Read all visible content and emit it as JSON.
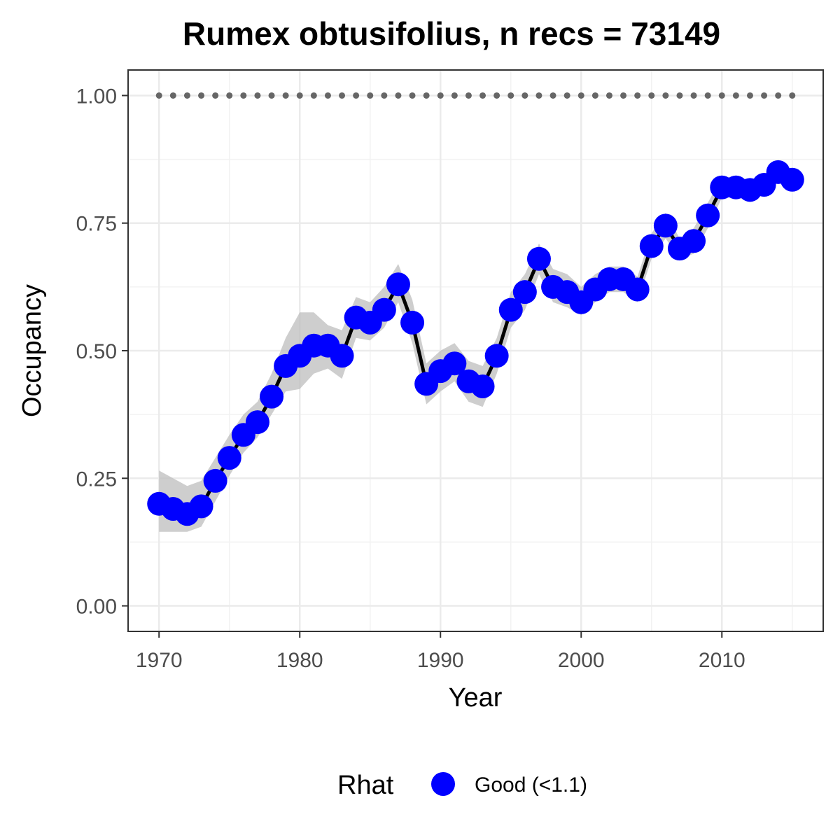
{
  "chart_data": {
    "type": "line",
    "title": "Rumex obtusifolius, n recs = 73149",
    "xlabel": "Year",
    "ylabel": "Occupancy",
    "xlim": [
      1967.8,
      2017.2
    ],
    "ylim": [
      -0.05,
      1.05
    ],
    "x_ticks": [
      1970,
      1980,
      1990,
      2000,
      2010
    ],
    "y_ticks": [
      0,
      0.25,
      0.5,
      0.75,
      1
    ],
    "x_tick_labels": [
      "1970",
      "1980",
      "1990",
      "2000",
      "2010"
    ],
    "y_tick_labels": [
      "0.00",
      "0.25",
      "0.50",
      "0.75",
      "1.00"
    ],
    "grid": true,
    "legend": {
      "title": "Rhat",
      "placement": "bottom",
      "entries": [
        {
          "label": "Good (<1.1)",
          "color": "#0000ff"
        }
      ]
    },
    "reference_line": {
      "y": 1.0,
      "style": "dotted",
      "color": "#666666"
    },
    "series": [
      {
        "x": [
          1970,
          1971,
          1972,
          1973,
          1974,
          1975,
          1976,
          1977,
          1978,
          1979,
          1980,
          1981,
          1982,
          1983,
          1984,
          1985,
          1986,
          1987,
          1988,
          1989,
          1990,
          1991,
          1992,
          1993,
          1994,
          1995,
          1996,
          1997,
          1998,
          1999,
          2000,
          2001,
          2002,
          2003,
          2004,
          2005,
          2006,
          2007,
          2008,
          2009,
          2010,
          2011,
          2012,
          2013,
          2014,
          2015
        ],
        "values": [
          0.2,
          0.19,
          0.18,
          0.195,
          0.245,
          0.29,
          0.335,
          0.36,
          0.41,
          0.47,
          0.49,
          0.51,
          0.51,
          0.49,
          0.565,
          0.555,
          0.58,
          0.63,
          0.555,
          0.435,
          0.46,
          0.475,
          0.44,
          0.43,
          0.49,
          0.58,
          0.615,
          0.68,
          0.625,
          0.615,
          0.595,
          0.62,
          0.64,
          0.64,
          0.62,
          0.705,
          0.745,
          0.7,
          0.715,
          0.765,
          0.82,
          0.82,
          0.815,
          0.825,
          0.85,
          0.835
        ],
        "lower": [
          0.145,
          0.145,
          0.145,
          0.155,
          0.205,
          0.255,
          0.3,
          0.33,
          0.375,
          0.42,
          0.425,
          0.455,
          0.465,
          0.445,
          0.525,
          0.52,
          0.545,
          0.595,
          0.515,
          0.395,
          0.42,
          0.44,
          0.4,
          0.39,
          0.455,
          0.545,
          0.58,
          0.65,
          0.595,
          0.585,
          0.57,
          0.595,
          0.615,
          0.615,
          0.595,
          0.68,
          0.72,
          0.68,
          0.69,
          0.74,
          0.8,
          0.8,
          0.795,
          0.805,
          0.83,
          0.815
        ],
        "upper": [
          0.265,
          0.25,
          0.235,
          0.245,
          0.29,
          0.335,
          0.375,
          0.4,
          0.455,
          0.525,
          0.575,
          0.575,
          0.55,
          0.54,
          0.605,
          0.595,
          0.625,
          0.67,
          0.6,
          0.475,
          0.5,
          0.515,
          0.48,
          0.47,
          0.525,
          0.615,
          0.65,
          0.71,
          0.66,
          0.65,
          0.625,
          0.65,
          0.665,
          0.665,
          0.645,
          0.73,
          0.77,
          0.72,
          0.74,
          0.79,
          0.84,
          0.84,
          0.835,
          0.845,
          0.87,
          0.855
        ],
        "line_color": "#000000",
        "point_color": "#0000ff",
        "ribbon_color": "#bebebe"
      }
    ]
  }
}
